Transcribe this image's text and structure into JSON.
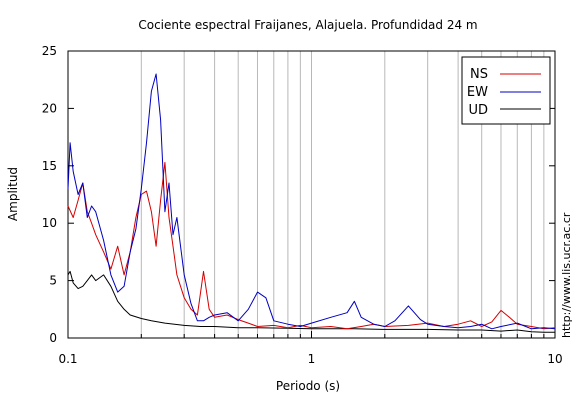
{
  "chart_data": {
    "type": "line",
    "title": "Cociente espectral Fraijanes, Alajuela. Profundidad 24 m",
    "xlabel": "Periodo (s)",
    "ylabel": "Amplitud",
    "xscale": "log",
    "xlim": [
      0.1,
      10
    ],
    "ylim": [
      0,
      25
    ],
    "xticks": [
      0.1,
      1,
      10
    ],
    "xtick_labels": [
      "0.1",
      "1",
      "10"
    ],
    "yticks": [
      0,
      5,
      10,
      15,
      20,
      25
    ],
    "yticks_labels": [
      "0",
      "5",
      "10",
      "15",
      "20",
      "25"
    ],
    "grid": "x",
    "legend_position": "top-right",
    "series": [
      {
        "name": "NS",
        "color": "#d40000",
        "x": [
          0.1,
          0.105,
          0.11,
          0.115,
          0.12,
          0.125,
          0.13,
          0.14,
          0.15,
          0.16,
          0.17,
          0.18,
          0.19,
          0.2,
          0.21,
          0.22,
          0.23,
          0.24,
          0.25,
          0.26,
          0.27,
          0.28,
          0.3,
          0.32,
          0.34,
          0.36,
          0.38,
          0.4,
          0.45,
          0.5,
          0.55,
          0.6,
          0.7,
          0.8,
          0.9,
          1.0,
          1.2,
          1.4,
          1.6,
          1.8,
          2.0,
          2.5,
          3.0,
          3.5,
          4.0,
          4.5,
          5.0,
          5.5,
          6.0,
          6.5,
          7.0,
          8.0,
          9.0,
          10.0
        ],
        "y": [
          11.5,
          10.5,
          12.0,
          13.5,
          11.0,
          10.0,
          9.0,
          7.5,
          6.0,
          8.0,
          5.5,
          7.5,
          10.5,
          12.5,
          12.8,
          11.0,
          8.0,
          12.0,
          15.3,
          10.5,
          8.0,
          5.5,
          3.5,
          2.5,
          2.0,
          5.8,
          2.5,
          1.8,
          2.0,
          1.6,
          1.3,
          1.0,
          1.1,
          0.9,
          1.1,
          0.9,
          1.0,
          0.8,
          1.0,
          1.2,
          1.0,
          1.1,
          1.3,
          1.0,
          1.2,
          1.5,
          1.0,
          1.4,
          2.4,
          1.8,
          1.2,
          1.0,
          0.8,
          0.9
        ]
      },
      {
        "name": "EW",
        "color": "#0000c0",
        "x": [
          0.1,
          0.102,
          0.105,
          0.11,
          0.115,
          0.12,
          0.125,
          0.13,
          0.14,
          0.15,
          0.16,
          0.17,
          0.18,
          0.19,
          0.2,
          0.21,
          0.22,
          0.23,
          0.24,
          0.25,
          0.26,
          0.27,
          0.28,
          0.3,
          0.32,
          0.34,
          0.36,
          0.38,
          0.4,
          0.45,
          0.5,
          0.55,
          0.6,
          0.65,
          0.7,
          0.8,
          0.9,
          1.0,
          1.2,
          1.4,
          1.5,
          1.6,
          1.8,
          2.0,
          2.2,
          2.5,
          2.8,
          3.0,
          3.5,
          4.0,
          4.5,
          5.0,
          5.5,
          6.0,
          7.0,
          8.0,
          9.0,
          10.0
        ],
        "y": [
          13.0,
          17.0,
          14.5,
          12.5,
          13.5,
          10.5,
          11.5,
          11.0,
          8.5,
          5.5,
          4.0,
          4.5,
          7.5,
          9.5,
          13.0,
          17.0,
          21.5,
          23.0,
          19.0,
          11.0,
          13.5,
          9.0,
          10.5,
          5.5,
          3.0,
          1.5,
          1.5,
          1.8,
          2.0,
          2.2,
          1.5,
          2.5,
          4.0,
          3.5,
          1.5,
          1.2,
          1.0,
          1.3,
          1.8,
          2.2,
          3.2,
          1.8,
          1.2,
          1.0,
          1.5,
          2.8,
          1.6,
          1.2,
          1.0,
          0.9,
          1.0,
          1.2,
          0.8,
          1.0,
          1.3,
          0.8,
          0.9,
          0.8
        ]
      },
      {
        "name": "UD",
        "color": "#000000",
        "x": [
          0.1,
          0.102,
          0.105,
          0.11,
          0.115,
          0.12,
          0.125,
          0.13,
          0.14,
          0.15,
          0.16,
          0.17,
          0.18,
          0.2,
          0.22,
          0.25,
          0.3,
          0.35,
          0.4,
          0.5,
          0.6,
          0.8,
          1.0,
          1.5,
          2.0,
          3.0,
          4.0,
          5.0,
          6.0,
          7.0,
          8.0,
          9.0,
          10.0
        ],
        "y": [
          5.5,
          5.8,
          4.8,
          4.3,
          4.5,
          5.0,
          5.5,
          5.0,
          5.5,
          4.5,
          3.2,
          2.5,
          2.0,
          1.7,
          1.5,
          1.3,
          1.1,
          1.0,
          1.0,
          0.9,
          0.9,
          0.85,
          0.8,
          0.8,
          0.75,
          0.75,
          0.7,
          0.7,
          0.6,
          0.7,
          0.55,
          0.5,
          0.5
        ]
      }
    ],
    "annotations": [
      "http://www.lis.ucr.ac.cr"
    ]
  }
}
